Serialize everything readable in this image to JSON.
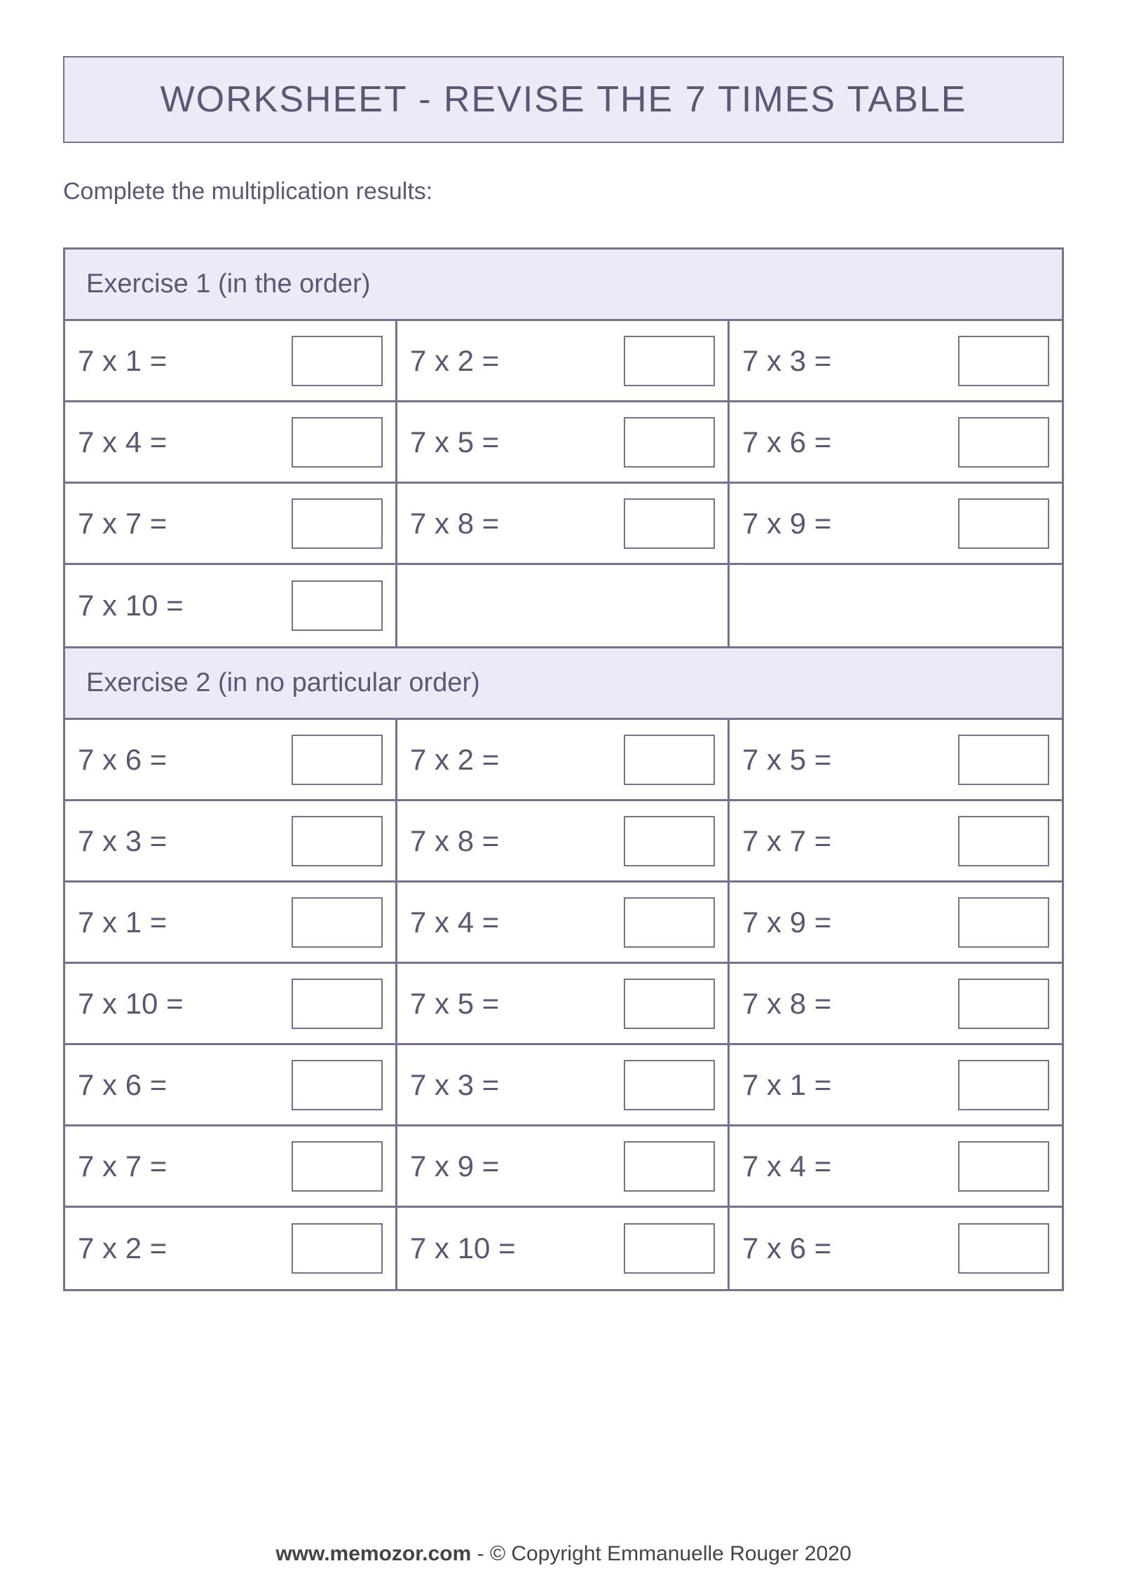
{
  "colors": {
    "border": "#7a6f8f",
    "header_bg": "#eceaf7",
    "text": "#5e5672",
    "page_bg": "#ffffff"
  },
  "title": "WORKSHEET - REVISE THE 7 TIMES TABLE",
  "instructions": "Complete the multiplication results:",
  "exercise1": {
    "header": "Exercise 1 (in the order)",
    "columns": 3,
    "rows": 4,
    "problems": [
      "7 x 1 =",
      "7 x 2 =",
      "7 x 3 =",
      "7 x 4 =",
      "7 x 5 =",
      "7 x 6 =",
      "7 x 7 =",
      "7 x 8 =",
      "7 x 9 =",
      "7 x 10 =",
      "",
      ""
    ]
  },
  "exercise2": {
    "header": "Exercise 2 (in no particular order)",
    "columns": 3,
    "rows": 7,
    "problems": [
      "7 x 6 =",
      "7 x 2 =",
      "7 x 5 =",
      "7 x 3 =",
      "7 x 8 =",
      "7 x 7 =",
      "7 x 1 =",
      "7 x 4 =",
      "7 x 9 =",
      "7 x 10 =",
      "7 x 5 =",
      "7 x 8 =",
      "7 x 6 =",
      "7 x 3 =",
      "7 x 1 =",
      "7 x 7 =",
      "7 x 9 =",
      "7 x 4 =",
      "7 x 2 =",
      "7 x 10 =",
      "7 x 6 ="
    ]
  },
  "footer": {
    "domain": "www.memozor.com",
    "rest": " - © Copyright Emmanuelle Rouger 2020"
  },
  "typography": {
    "title_fontsize": 52,
    "instructions_fontsize": 34,
    "header_fontsize": 38,
    "problem_fontsize": 42,
    "footer_fontsize": 30
  },
  "answer_box": {
    "width": 130,
    "height": 72,
    "border_width": 2
  }
}
